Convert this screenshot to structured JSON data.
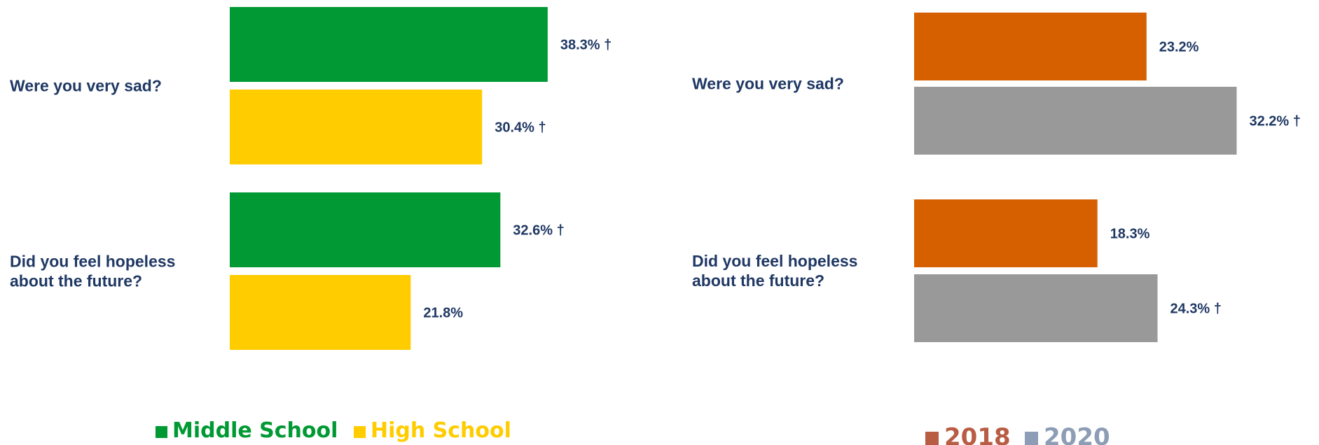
{
  "chart_data": [
    {
      "type": "bar",
      "orientation": "horizontal",
      "categories": [
        "Were you very sad?",
        "Did you feel hopeless about the future?"
      ],
      "category_lines": [
        [
          "Were you very sad?"
        ],
        [
          "Did you feel hopeless",
          "about the future?"
        ]
      ],
      "series": [
        {
          "name": "Middle School",
          "values": [
            38.3,
            32.6
          ],
          "labels": [
            "38.3% †",
            "32.6% †"
          ],
          "color": "#009933"
        },
        {
          "name": "High School",
          "values": [
            30.4,
            21.8
          ],
          "labels": [
            "30.4% †",
            "21.8%"
          ],
          "color": "#ffcc00"
        }
      ],
      "legend_position": "bottom",
      "label_color": "#1f3864",
      "grid": false
    },
    {
      "type": "bar",
      "orientation": "horizontal",
      "categories": [
        "Were you very sad?",
        "Did you feel hopeless about the future?"
      ],
      "category_lines": [
        [
          "Were you very sad?"
        ],
        [
          "Did you feel hopeless",
          "about the future?"
        ]
      ],
      "series": [
        {
          "name": "2018",
          "values": [
            23.2,
            18.3
          ],
          "labels": [
            "23.2%",
            "18.3%"
          ],
          "color": "#d65f00",
          "legend_color": "#b85c44"
        },
        {
          "name": "2020",
          "values": [
            32.2,
            24.3
          ],
          "labels": [
            "32.2% †",
            "24.3% †"
          ],
          "color": "#999999",
          "legend_color": "#8c9db5"
        }
      ],
      "legend_position": "bottom",
      "label_color": "#1f3864",
      "grid": false
    }
  ]
}
